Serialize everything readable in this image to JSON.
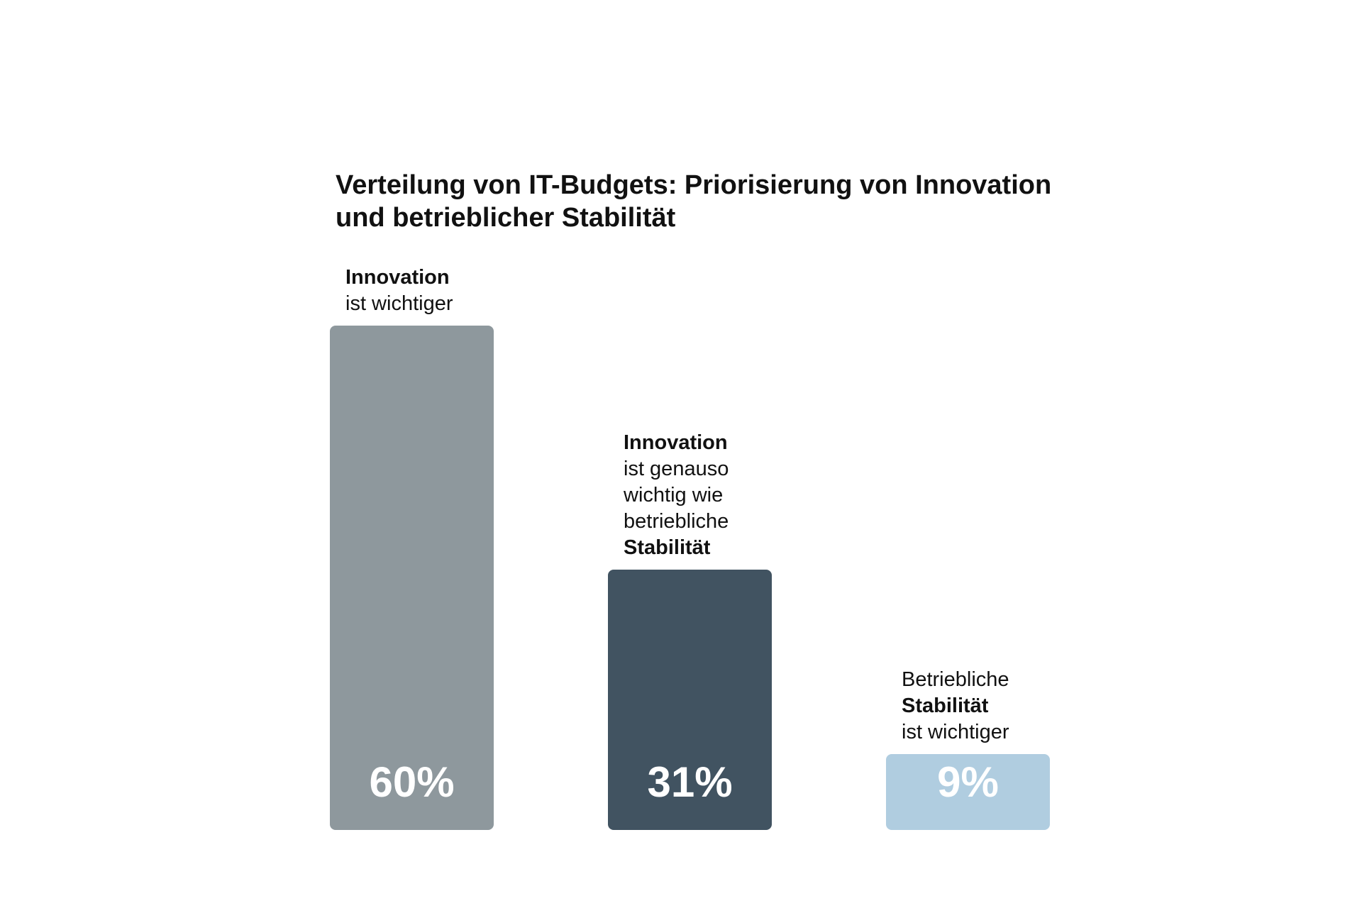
{
  "chart_data": {
    "type": "bar",
    "title": "Verteilung von IT-Budgets: Priorisierung von Innovation und betrieblicher Stabilität",
    "title_lines": [
      "Verteilung von IT-Budgets: Priorisierung von Innovation",
      "und betrieblicher Stabilität"
    ],
    "categories": [
      "Innovation ist wichtiger",
      "Innovation ist genauso wichtig wie betriebliche Stabilität",
      "Betriebliche Stabilität ist wichtiger"
    ],
    "values": [
      60,
      31,
      9
    ],
    "value_labels": [
      "60%",
      "31%",
      "9%"
    ],
    "unit": "%",
    "category_label_lines": [
      [
        {
          "text": "Innovation",
          "bold": true
        },
        {
          "text": "ist wichtiger",
          "bold": false
        }
      ],
      [
        {
          "text": "Innovation",
          "bold": true
        },
        {
          "text": "ist genauso",
          "bold": false
        },
        {
          "text": "wichtig wie",
          "bold": false
        },
        {
          "text": "betriebliche",
          "bold": false
        },
        {
          "text": "Stabilität",
          "bold": true
        }
      ],
      [
        {
          "text": "Betriebliche",
          "bold": false
        },
        {
          "text": "Stabilität",
          "bold": true
        },
        {
          "text": "ist wichtiger",
          "bold": false
        }
      ]
    ],
    "colors": [
      "#8e989d",
      "#415361",
      "#b0cde0"
    ],
    "ylim": [
      0,
      60
    ],
    "xlabel": "",
    "ylabel": "",
    "grid": false,
    "axes_visible": false,
    "legend": "none"
  }
}
